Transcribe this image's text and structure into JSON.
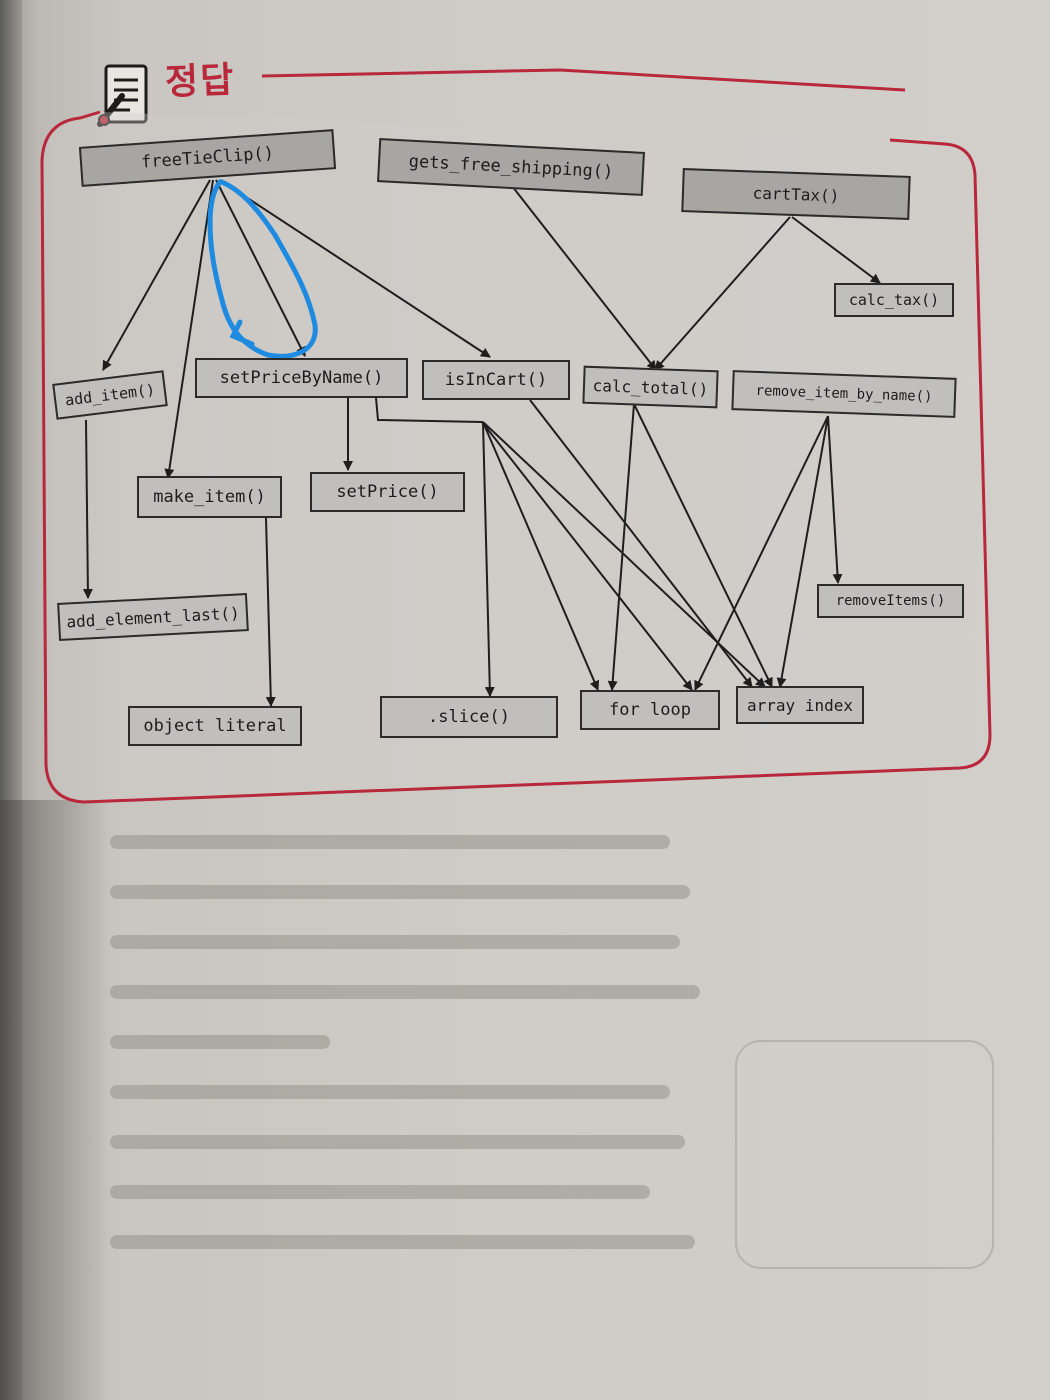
{
  "header": {
    "title": "정답"
  },
  "nodes": {
    "freeTieClip": "freeTieClip()",
    "gets_free_shipping": "gets_free_shipping()",
    "cartTax": "cartTax()",
    "calc_tax": "calc_tax()",
    "add_item": "add_item()",
    "setPriceByName": "setPriceByName()",
    "isInCart": "isInCart()",
    "calc_total": "calc_total()",
    "remove_item_by_name": "remove_item_by_name()",
    "make_item": "make_item()",
    "setPrice": "setPrice()",
    "add_element_last": "add_element_last()",
    "removeItems": "removeItems()",
    "object_literal": "object literal",
    "slice": ".slice()",
    "for_loop": "for loop",
    "array_index": "array index"
  },
  "colors": {
    "frame": "#b8283a",
    "node_fill": "#a8a6a3",
    "arrow": "#1f1e1d",
    "highlight": "#1f8be0"
  }
}
